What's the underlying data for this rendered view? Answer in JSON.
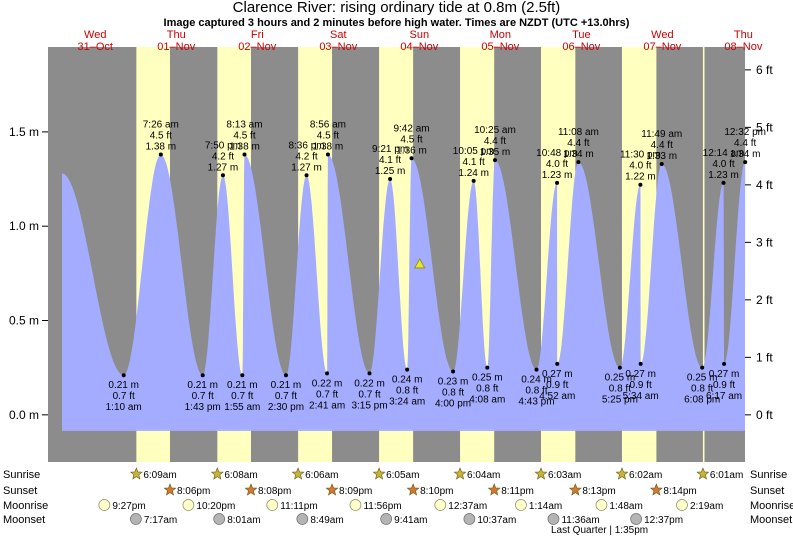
{
  "header": {
    "title": "Clarence River: rising  ordinary tide at 0.8m (2.5ft)",
    "subtitle": "Image captured 3 hours and 2 minutes before high water. Times are NZDT (UTC +13.0hrs)"
  },
  "days": [
    {
      "dow": "Wed",
      "date": "31–Oct"
    },
    {
      "dow": "Thu",
      "date": "01–Nov"
    },
    {
      "dow": "Fri",
      "date": "02–Nov"
    },
    {
      "dow": "Sat",
      "date": "03–Nov"
    },
    {
      "dow": "Sun",
      "date": "04–Nov"
    },
    {
      "dow": "Mon",
      "date": "05–Nov"
    },
    {
      "dow": "Tue",
      "date": "06–Nov"
    },
    {
      "dow": "Wed",
      "date": "07–Nov"
    },
    {
      "dow": "Thu",
      "date": "08–Nov"
    }
  ],
  "chart_data": {
    "type": "area",
    "title": "Clarence River: rising  ordinary tide at 0.8m (2.5ft)",
    "ylabel_left_unit": "m",
    "ylabel_right_unit": "ft",
    "ylim_m": [
      -0.25,
      1.95
    ],
    "left_ticks": [
      {
        "v": 0.0,
        "label": "0.0 m"
      },
      {
        "v": 0.5,
        "label": "0.5 m"
      },
      {
        "v": 1.0,
        "label": "1.0 m"
      },
      {
        "v": 1.5,
        "label": "1.5 m"
      }
    ],
    "right_ticks": [
      {
        "v": 0,
        "label": "0 ft"
      },
      {
        "v": 1,
        "label": "1 ft"
      },
      {
        "v": 2,
        "label": "2 ft"
      },
      {
        "v": 3,
        "label": "3 ft"
      },
      {
        "v": 4,
        "label": "4 ft"
      },
      {
        "v": 5,
        "label": "5 ft"
      },
      {
        "v": 6,
        "label": "6 ft"
      }
    ],
    "x_range_days": [
      -0.083,
      8.52
    ],
    "daylight": [
      {
        "rise": 1.0076,
        "set": 1.9226
      },
      {
        "rise": 2.0069,
        "set": 2.9222
      },
      {
        "rise": 3.0042,
        "set": 3.9229
      },
      {
        "rise": 4.0035,
        "set": 4.9236
      },
      {
        "rise": 5.0028,
        "set": 5.9243
      },
      {
        "rise": 6.0021,
        "set": 6.9257
      },
      {
        "rise": 7.0014,
        "set": 7.9264
      },
      {
        "rise": 8.0007,
        "set": 8.52
      }
    ],
    "current": {
      "t": 4.5049,
      "m": 0.8
    },
    "tides": [
      {
        "t": 0.8514,
        "m": 0.21,
        "time": "1:10 am",
        "ft": "0.7 ft",
        "hl": "L"
      },
      {
        "t": 1.3097,
        "m": 1.38,
        "time": "7:26 am",
        "ft": "4.5 ft",
        "hl": "H"
      },
      {
        "t": 1.8264,
        "m": 0.21,
        "time": "1:43 pm",
        "ft": "0.7 ft",
        "hl": "L"
      },
      {
        "t": 2.0764,
        "m": 1.27,
        "time": "7:50 pm",
        "ft": "4.2 ft",
        "hl": "H"
      },
      {
        "t": 2.3153,
        "m": 0.21,
        "time": "1:55 am",
        "ft": "0.7 ft",
        "hl": "L"
      },
      {
        "t": 2.3424,
        "m": 1.38,
        "time": "8:13 am",
        "ft": "4.5 ft",
        "hl": "H"
      },
      {
        "t": 2.8542,
        "m": 0.21,
        "time": "2:30 pm",
        "ft": "0.7 ft",
        "hl": "L"
      },
      {
        "t": 3.1083,
        "m": 1.27,
        "time": "8:36 pm",
        "ft": "4.2 ft",
        "hl": "H"
      },
      {
        "t": 3.3618,
        "m": 0.22,
        "time": "2:41 am",
        "ft": "0.7 ft",
        "hl": "L"
      },
      {
        "t": 3.3722,
        "m": 1.38,
        "time": "8:56 am",
        "ft": "4.5 ft",
        "hl": "H"
      },
      {
        "t": 3.8854,
        "m": 0.22,
        "time": "3:15 pm",
        "ft": "0.7 ft",
        "hl": "L"
      },
      {
        "t": 4.1396,
        "m": 1.25,
        "time": "9:21 pm",
        "ft": "4.1 ft",
        "hl": "H"
      },
      {
        "t": 4.35,
        "m": 0.24,
        "time": "3:24 am",
        "ft": "0.8 ft",
        "hl": "L"
      },
      {
        "t": 4.4042,
        "m": 1.36,
        "time": "9:42 am",
        "ft": "4.5 ft",
        "hl": "H"
      },
      {
        "t": 4.9167,
        "m": 0.23,
        "time": "4:00 pm",
        "ft": "0.8 ft",
        "hl": "L"
      },
      {
        "t": 5.1708,
        "m": 1.24,
        "time": "10:05 pm",
        "ft": "4.1 ft",
        "hl": "H"
      },
      {
        "t": 5.3389,
        "m": 0.25,
        "time": "4:08 am",
        "ft": "0.8 ft",
        "hl": "L"
      },
      {
        "t": 5.434,
        "m": 1.35,
        "time": "10:25 am",
        "ft": "4.4 ft",
        "hl": "H"
      },
      {
        "t": 5.9465,
        "m": 0.24,
        "time": "4:43 pm",
        "ft": "0.8 ft",
        "hl": "L"
      },
      {
        "t": 6.2,
        "m": 1.23,
        "time": "10:48 pm",
        "ft": "4.0 ft",
        "hl": "H"
      },
      {
        "t": 6.2028,
        "m": 0.27,
        "time": "4:52 am",
        "ft": "0.9 ft",
        "hl": "L"
      },
      {
        "t": 6.4639,
        "m": 1.34,
        "time": "11:08 am",
        "ft": "4.4 ft",
        "hl": "H"
      },
      {
        "t": 6.9757,
        "m": 0.25,
        "time": "5:25 pm",
        "ft": "0.8 ft",
        "hl": "L"
      },
      {
        "t": 7.2292,
        "m": 1.22,
        "time": "11:30 pm",
        "ft": "4.0 ft",
        "hl": "H"
      },
      {
        "t": 7.2319,
        "m": 0.27,
        "time": "5:34 am",
        "ft": "0.9 ft",
        "hl": "L"
      },
      {
        "t": 7.4924,
        "m": 1.33,
        "time": "11:49 am",
        "ft": "4.4 ft",
        "hl": "H"
      },
      {
        "t": 7.9915,
        "m": 0.25,
        "time": "6:08 pm",
        "ft": "0.8 ft",
        "hl": "L"
      },
      {
        "t": 8.2549,
        "m": 1.23,
        "time": "12:14 am",
        "ft": "4.0 ft",
        "hl": "H"
      },
      {
        "t": 8.2618,
        "m": 0.27,
        "time": "6:17 am",
        "ft": "0.9 ft",
        "hl": "L"
      },
      {
        "t": 8.5222,
        "m": 1.34,
        "time": "12:32 pm",
        "ft": "4.4 ft",
        "hl": "H"
      }
    ]
  },
  "astro": {
    "row_labels": {
      "sunrise": "Sunrise",
      "sunset": "Sunset",
      "moonrise": "Moonrise",
      "moonset": "Moonset"
    },
    "sunrise": [
      {
        "t": 1.0076,
        "label": "6:09am"
      },
      {
        "t": 2.0069,
        "label": "6:08am"
      },
      {
        "t": 3.0042,
        "label": "6:06am"
      },
      {
        "t": 4.0035,
        "label": "6:05am"
      },
      {
        "t": 5.0028,
        "label": "6:04am"
      },
      {
        "t": 6.0021,
        "label": "6:03am"
      },
      {
        "t": 7.0014,
        "label": "6:02am"
      },
      {
        "t": 8.0007,
        "label": "6:01am"
      }
    ],
    "sunset": [
      {
        "t": 1.4226,
        "label": "8:06pm"
      },
      {
        "t": 2.4222,
        "label": "8:08pm"
      },
      {
        "t": 3.4229,
        "label": "8:09pm"
      },
      {
        "t": 4.4236,
        "label": "8:10pm"
      },
      {
        "t": 5.4243,
        "label": "8:11pm"
      },
      {
        "t": 6.4257,
        "label": "8:13pm"
      },
      {
        "t": 7.4264,
        "label": "8:14pm"
      }
    ],
    "moonrise": [
      {
        "t": 0.6125,
        "label": "9:27pm"
      },
      {
        "t": 1.65,
        "label": "10:20pm"
      },
      {
        "t": 2.685,
        "label": "11:11pm"
      },
      {
        "t": 3.712,
        "label": "11:56pm"
      },
      {
        "t": 4.759,
        "label": "12:37am"
      },
      {
        "t": 5.754,
        "label": "1:14am"
      },
      {
        "t": 6.748,
        "label": "1:48am"
      },
      {
        "t": 7.742,
        "label": "2:19am"
      }
    ],
    "moonset": [
      {
        "t": 1.002,
        "label": "7:17am"
      },
      {
        "t": 2.03,
        "label": "8:01am"
      },
      {
        "t": 3.056,
        "label": "8:49am"
      },
      {
        "t": 4.091,
        "label": "9:41am"
      },
      {
        "t": 5.118,
        "label": "10:37am"
      },
      {
        "t": 6.156,
        "label": "11:36am"
      },
      {
        "t": 7.176,
        "label": "12:37pm"
      }
    ],
    "phase_note": "Last Quarter | 1:35pm"
  },
  "colors": {
    "night": "#8c8c8c",
    "day": "#ffffc0",
    "water": "#a4acff",
    "day_text": "#cc0000",
    "sun": "#c8b43c",
    "sunset": "#d27832",
    "moonrise": "#ffffc8",
    "moonset": "#b4b4b4",
    "marker": "#e6e632"
  }
}
